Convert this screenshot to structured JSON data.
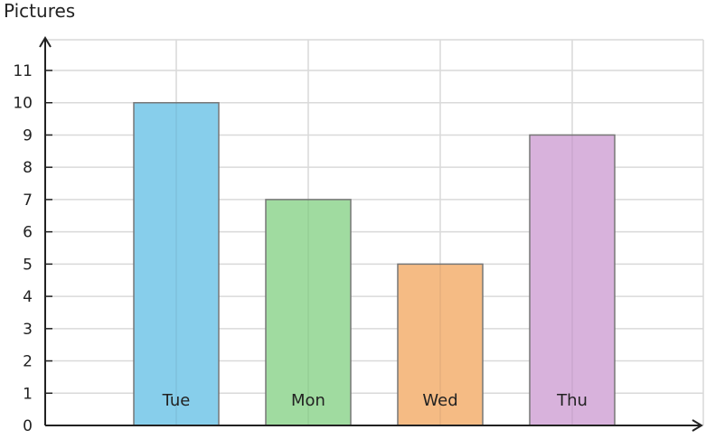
{
  "chart_data": {
    "type": "bar",
    "ylabel": "Pictures",
    "categories": [
      "Tue",
      "Mon",
      "Wed",
      "Thu"
    ],
    "values": [
      10,
      7,
      5,
      9
    ],
    "colors": [
      "#87ceeb",
      "#a0dba0",
      "#f5bb84",
      "#d8b2dc"
    ],
    "ylim": [
      0,
      11
    ],
    "yticks": [
      "0",
      "1",
      "2",
      "3",
      "4",
      "5",
      "6",
      "7",
      "8",
      "9",
      "10",
      "11"
    ],
    "grid": true
  }
}
